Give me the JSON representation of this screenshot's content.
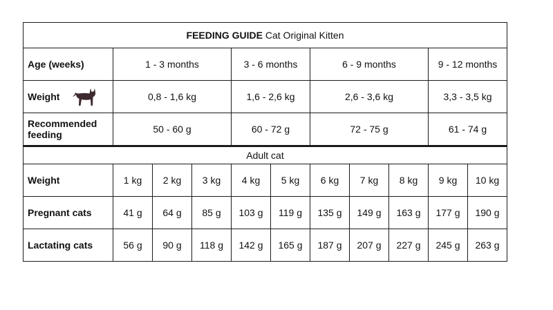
{
  "title": {
    "bold": "FEEDING GUIDE",
    "rest": "Cat Original Kitten"
  },
  "kitten": {
    "age_label": "Age (weeks)",
    "weight_label": "Weight",
    "recommended_label": "Recommended feeding",
    "ages": [
      "1 - 3 months",
      "3 - 6 months",
      "6 - 9 months",
      "9 - 12 months"
    ],
    "weights": [
      "0,8 - 1,6 kg",
      "1,6 - 2,6 kg",
      "2,6 - 3,6 kg",
      "3,3 - 3,5 kg"
    ],
    "feeding": [
      "50 - 60 g",
      "60 - 72 g",
      "72 - 75 g",
      "61 - 74 g"
    ]
  },
  "adult": {
    "heading": "Adult cat",
    "weight_label": "Weight",
    "pregnant_label": "Pregnant cats",
    "lactating_label": "Lactating cats",
    "weights": [
      "1 kg",
      "2 kg",
      "3 kg",
      "4 kg",
      "5 kg",
      "6 kg",
      "7 kg",
      "8 kg",
      "9 kg",
      "10 kg"
    ],
    "pregnant": [
      "41 g",
      "64 g",
      "85 g",
      "103 g",
      "119 g",
      "135 g",
      "149 g",
      "163 g",
      "177 g",
      "190 g"
    ],
    "lactating": [
      "56 g",
      "90 g",
      "118 g",
      "142 g",
      "165 g",
      "187 g",
      "207 g",
      "227 g",
      "245 g",
      "263 g"
    ]
  },
  "icons": {
    "weight_icon": "cat-silhouette-icon"
  },
  "colors": {
    "cat_icon": "#3d2a2e",
    "border": "#1a1a1a"
  }
}
